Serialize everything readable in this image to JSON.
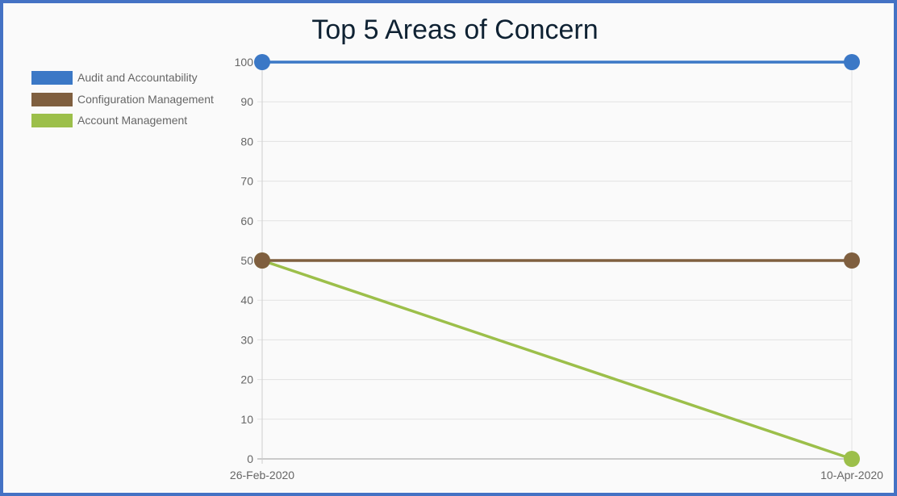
{
  "chart_data": {
    "type": "line",
    "title": "Top 5 Areas of Concern",
    "x": [
      "26-Feb-2020",
      "10-Apr-2020"
    ],
    "series": [
      {
        "name": "Audit and Accountability",
        "color": "#3b78c6",
        "values": [
          100,
          100
        ]
      },
      {
        "name": "Configuration Management",
        "color": "#7f5f3f",
        "values": [
          50,
          50
        ]
      },
      {
        "name": "Account Management",
        "color": "#9cbf4a",
        "values": [
          50,
          0
        ]
      }
    ],
    "ylim": [
      0,
      100
    ],
    "yticks": [
      0,
      10,
      20,
      30,
      40,
      50,
      60,
      70,
      80,
      90,
      100
    ],
    "grid": true,
    "legend": "top-left",
    "frame_color": "#4472c4"
  }
}
